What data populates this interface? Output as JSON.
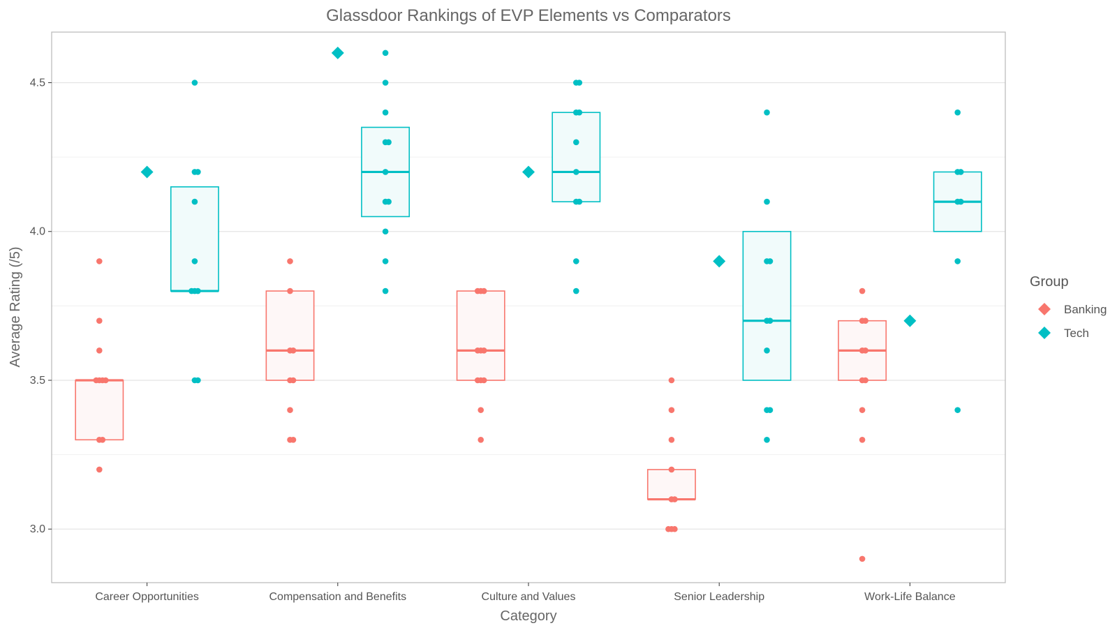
{
  "chart_data": {
    "type": "box",
    "title": "Glassdoor Rankings of EVP Elements vs Comparators",
    "xlabel": "Category",
    "ylabel": "Average Rating (/5)",
    "ylim": [
      2.82,
      4.67
    ],
    "yticks": [
      "3.0",
      "3.5",
      "4.0",
      "4.5"
    ],
    "grid": true,
    "legend": {
      "title": "Group",
      "placement": "right",
      "entries": [
        {
          "name": "Banking",
          "color": "#F8766D"
        },
        {
          "name": "Tech",
          "color": "#00BFC4"
        }
      ]
    },
    "categories": [
      "Career Opportunities",
      "Compensation and Benefits",
      "Culture and Values",
      "Senior Leadership",
      "Work-Life Balance"
    ],
    "series": [
      {
        "name": "Banking",
        "color": "#F8766D",
        "boxes": [
          {
            "q1": 3.3,
            "median": 3.5,
            "q3": 3.5
          },
          {
            "q1": 3.5,
            "median": 3.6,
            "q3": 3.8
          },
          {
            "q1": 3.5,
            "median": 3.6,
            "q3": 3.8
          },
          {
            "q1": 3.1,
            "median": 3.1,
            "q3": 3.2
          },
          {
            "q1": 3.5,
            "median": 3.6,
            "q3": 3.7
          }
        ],
        "points": [
          [
            3.9,
            3.7,
            3.6,
            3.5,
            3.5,
            3.5,
            3.5,
            3.3,
            3.3,
            3.2
          ],
          [
            3.9,
            3.8,
            3.6,
            3.6,
            3.5,
            3.5,
            3.4,
            3.3,
            3.3
          ],
          [
            3.8,
            3.8,
            3.8,
            3.6,
            3.6,
            3.6,
            3.5,
            3.5,
            3.5,
            3.4,
            3.3
          ],
          [
            3.5,
            3.4,
            3.3,
            3.2,
            3.1,
            3.1,
            3.0,
            3.0,
            3.0
          ],
          [
            3.8,
            3.7,
            3.7,
            3.6,
            3.6,
            3.5,
            3.5,
            3.4,
            3.3,
            2.9
          ]
        ]
      },
      {
        "name": "Tech",
        "color": "#00BFC4",
        "boxes": [
          {
            "q1": 3.8,
            "median": 3.8,
            "q3": 4.15
          },
          {
            "q1": 4.05,
            "median": 4.2,
            "q3": 4.35
          },
          {
            "q1": 4.1,
            "median": 4.2,
            "q3": 4.4
          },
          {
            "q1": 3.5,
            "median": 3.7,
            "q3": 4.0
          },
          {
            "q1": 4.0,
            "median": 4.1,
            "q3": 4.2
          }
        ],
        "points": [
          [
            4.5,
            4.2,
            4.2,
            4.1,
            3.9,
            3.8,
            3.8,
            3.8,
            3.5,
            3.5
          ],
          [
            4.6,
            4.5,
            4.4,
            4.3,
            4.3,
            4.2,
            4.1,
            4.1,
            4.0,
            3.9,
            3.8
          ],
          [
            4.5,
            4.5,
            4.4,
            4.4,
            4.3,
            4.2,
            4.1,
            4.1,
            3.9,
            3.8
          ],
          [
            4.4,
            4.1,
            3.9,
            3.9,
            3.7,
            3.7,
            3.6,
            3.4,
            3.4,
            3.3
          ],
          [
            4.4,
            4.2,
            4.2,
            4.1,
            4.1,
            3.9,
            3.4
          ]
        ]
      }
    ],
    "comparators": [
      {
        "category": "Career Opportunities",
        "group": "Tech",
        "value": 4.2
      },
      {
        "category": "Compensation and Benefits",
        "group": "Tech",
        "value": 4.6
      },
      {
        "category": "Culture and Values",
        "group": "Tech",
        "value": 4.2
      },
      {
        "category": "Senior Leadership",
        "group": "Tech",
        "value": 3.9
      },
      {
        "category": "Work-Life Balance",
        "group": "Tech",
        "value": 3.7
      }
    ]
  }
}
